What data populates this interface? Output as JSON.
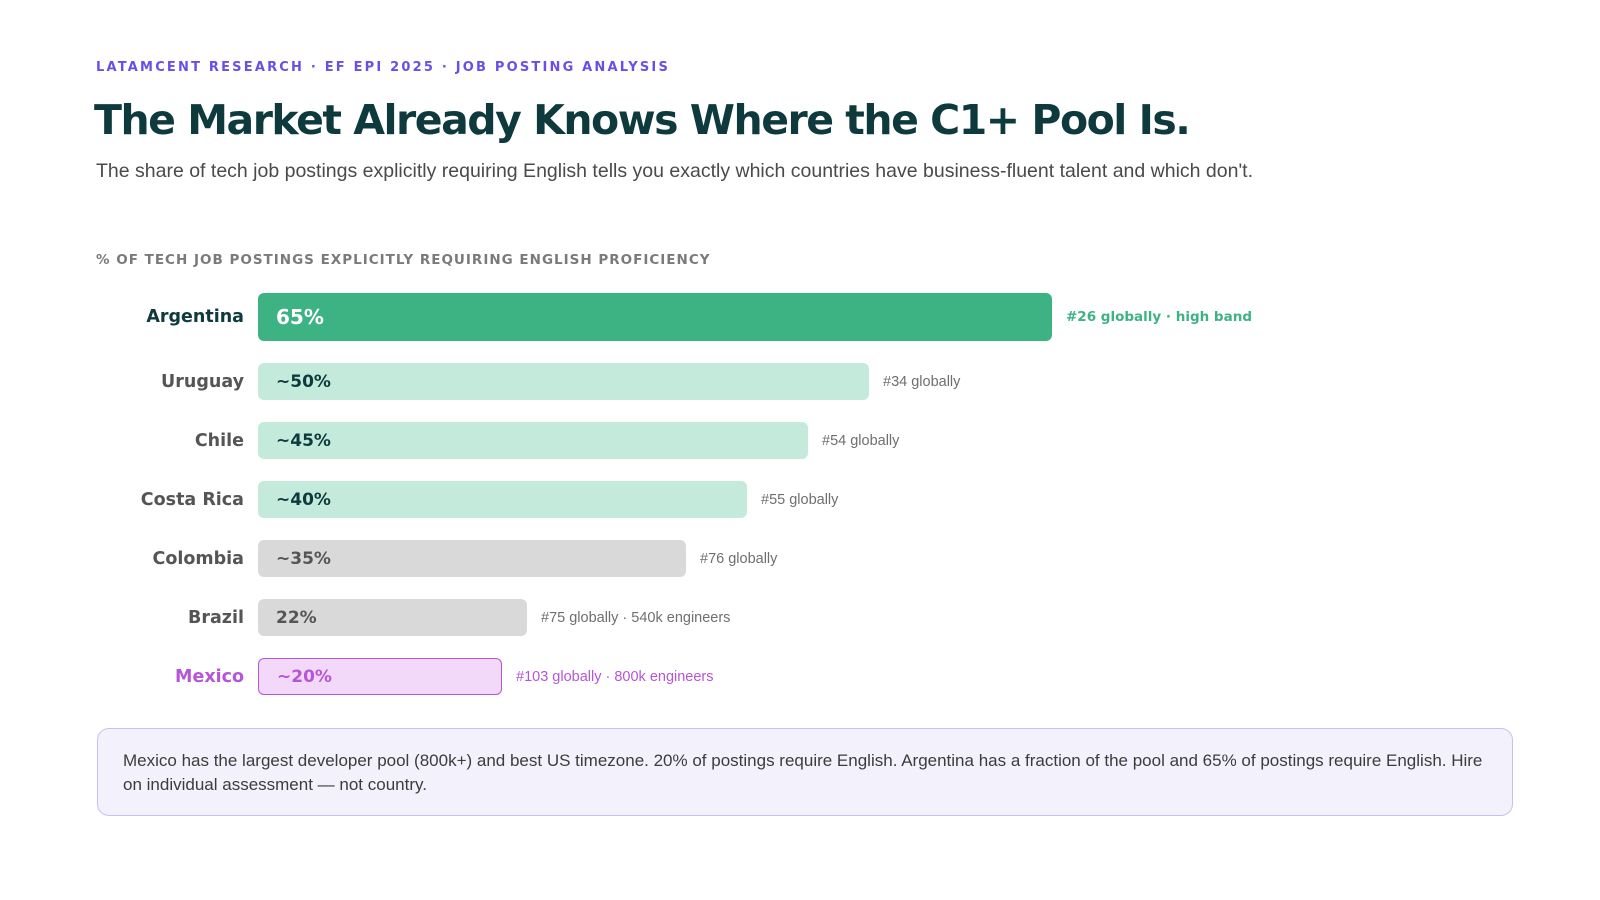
{
  "header": {
    "eyebrow": "LATAMCENT RESEARCH · EF EPI 2025 · JOB POSTING ANALYSIS",
    "title": "The Market Already Knows Where the C1+ Pool Is.",
    "subtitle": "The share of tech job postings explicitly requiring English tells you exactly which countries have business-fluent talent and which don't."
  },
  "chart_data": {
    "type": "bar",
    "orientation": "horizontal",
    "ylabel": "% OF TECH JOB POSTINGS EXPLICITLY REQUIRING ENGLISH PROFICIENCY",
    "xlim": [
      0,
      65
    ],
    "grid": false,
    "categories": [
      "Argentina",
      "Uruguay",
      "Chile",
      "Costa Rica",
      "Colombia",
      "Brazil",
      "Mexico"
    ],
    "values": [
      65,
      50,
      45,
      40,
      35,
      22,
      20
    ],
    "value_labels": [
      "65%",
      "~50%",
      "~45%",
      "~40%",
      "~35%",
      "22%",
      "~20%"
    ],
    "notes": [
      "#26 globally · high band",
      "#34 globally",
      "#54 globally",
      "#55 globally",
      "#76 globally",
      "#75 globally · 540k engineers",
      "#103 globally · 800k engineers"
    ],
    "colors": {
      "high": "#3db384",
      "mid": "#c3eadb",
      "low": "#d9d9d9",
      "highlight_fill": "#f2d9fa",
      "highlight_border": "#b556d6",
      "highlight_text": "#b556d6",
      "dark_text": "#0e3a3d",
      "muted_text": "#555555"
    }
  },
  "callout": {
    "text": "Mexico has the largest developer pool (800k+) and best US timezone. 20% of postings require English. Argentina has a fraction of the pool and 65% of postings require English. Hire on individual assessment — not country."
  }
}
